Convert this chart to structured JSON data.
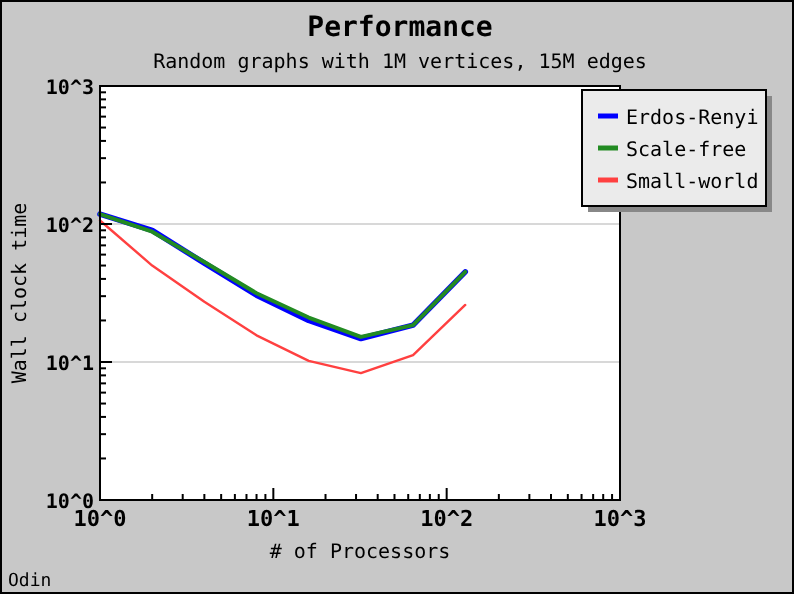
{
  "chart_data": {
    "type": "line",
    "title": "Performance",
    "subtitle": "Random graphs with 1M vertices, 15M edges",
    "xlabel": "# of Processors",
    "ylabel": "Wall clock time",
    "annotations": [
      "Odin"
    ],
    "x": [
      1,
      2,
      4,
      8,
      16,
      32,
      64,
      128
    ],
    "series": [
      {
        "name": "Erdos-Renyi",
        "color": "#0000ff",
        "values": [
          118,
          90,
          52,
          30.5,
          20,
          14.8,
          18.5,
          45
        ]
      },
      {
        "name": "Scale-free",
        "color": "#228b22",
        "values": [
          118,
          88,
          53,
          31.5,
          21,
          15.2,
          18.5,
          45
        ]
      },
      {
        "name": "Small-world",
        "color": "#ff4040",
        "values": [
          106,
          50,
          27.3,
          15.6,
          10.2,
          8.3,
          11.2,
          25.9
        ]
      }
    ],
    "log": "xy",
    "xlim": [
      1,
      1000
    ],
    "ylim": [
      1,
      1000
    ],
    "xticks": [
      {
        "value": 1,
        "label": "10^0"
      },
      {
        "value": 2,
        "label": null
      },
      {
        "value": 3,
        "label": null
      },
      {
        "value": 4,
        "label": null
      },
      {
        "value": 5,
        "label": null
      },
      {
        "value": 6,
        "label": null
      },
      {
        "value": 7,
        "label": null
      },
      {
        "value": 8,
        "label": null
      },
      {
        "value": 9,
        "label": null
      },
      {
        "value": 10,
        "label": "10^1"
      },
      {
        "value": 20,
        "label": null
      },
      {
        "value": 30,
        "label": null
      },
      {
        "value": 40,
        "label": null
      },
      {
        "value": 50,
        "label": null
      },
      {
        "value": 60,
        "label": null
      },
      {
        "value": 70,
        "label": null
      },
      {
        "value": 80,
        "label": null
      },
      {
        "value": 90,
        "label": null
      },
      {
        "value": 100,
        "label": "10^2"
      },
      {
        "value": 200,
        "label": null
      },
      {
        "value": 300,
        "label": null
      },
      {
        "value": 400,
        "label": null
      },
      {
        "value": 500,
        "label": null
      },
      {
        "value": 600,
        "label": null
      },
      {
        "value": 700,
        "label": null
      },
      {
        "value": 800,
        "label": null
      },
      {
        "value": 900,
        "label": null
      },
      {
        "value": 1000,
        "label": "10^3"
      }
    ],
    "yticks": [
      {
        "value": 1,
        "label": "10^0"
      },
      {
        "value": 2,
        "label": null
      },
      {
        "value": 3,
        "label": null
      },
      {
        "value": 4,
        "label": null
      },
      {
        "value": 5,
        "label": null
      },
      {
        "value": 6,
        "label": null
      },
      {
        "value": 7,
        "label": null
      },
      {
        "value": 8,
        "label": null
      },
      {
        "value": 9,
        "label": null
      },
      {
        "value": 10,
        "label": "10^1"
      },
      {
        "value": 20,
        "label": null
      },
      {
        "value": 30,
        "label": null
      },
      {
        "value": 40,
        "label": null
      },
      {
        "value": 50,
        "label": null
      },
      {
        "value": 60,
        "label": null
      },
      {
        "value": 70,
        "label": null
      },
      {
        "value": 80,
        "label": null
      },
      {
        "value": 90,
        "label": null
      },
      {
        "value": 100,
        "label": "10^2"
      },
      {
        "value": 200,
        "label": null
      },
      {
        "value": 300,
        "label": null
      },
      {
        "value": 400,
        "label": null
      },
      {
        "value": 500,
        "label": null
      },
      {
        "value": 600,
        "label": null
      },
      {
        "value": 700,
        "label": null
      },
      {
        "value": 800,
        "label": null
      },
      {
        "value": 900,
        "label": null
      },
      {
        "value": 1000,
        "label": "10^3"
      }
    ],
    "grid": "y",
    "legend": "top right",
    "marker": "none",
    "line_style": "solid"
  }
}
